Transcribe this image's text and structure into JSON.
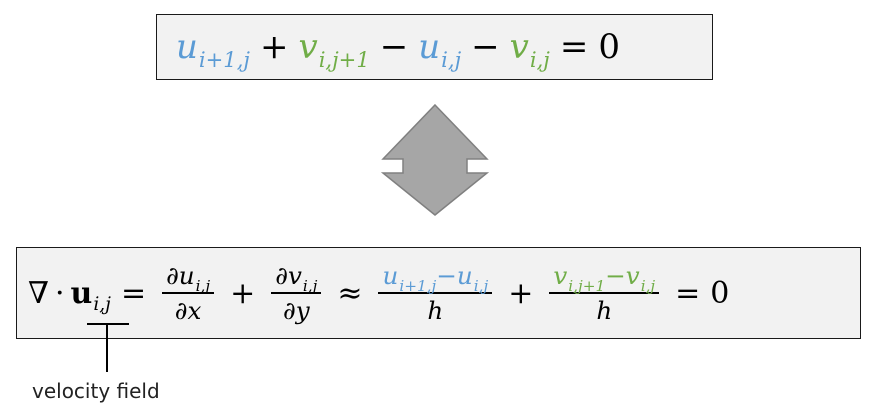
{
  "top_equation": {
    "t1_base": "u",
    "t1_sub": "i+1,j",
    "plus": "+",
    "t2_base": "v",
    "t2_sub": "i,j+1",
    "minus1": "−",
    "t3_base": "u",
    "t3_sub": "i,j",
    "minus2": "−",
    "t4_base": "v",
    "t4_sub": "i,j",
    "equals": "=",
    "rhs": "0"
  },
  "bottom_equation": {
    "nabla": "∇",
    "dot": "·",
    "u_bold": "u",
    "u_sub": "i,j",
    "eq1": "=",
    "frac1_num_pre": "∂",
    "frac1_num_base": "u",
    "frac1_num_sub": "i,j",
    "frac1_den": "∂x",
    "plus1": "+",
    "frac2_num_pre": "∂",
    "frac2_num_base": "v",
    "frac2_num_sub": "i,j",
    "frac2_den": "∂y",
    "approx": "≈",
    "frac3_a_base": "u",
    "frac3_a_sub": "i+1,j",
    "frac3_minus": "−",
    "frac3_b_base": "u",
    "frac3_b_sub": "i,j",
    "frac3_den": "h",
    "plus2": "+",
    "frac4_a_base": "v",
    "frac4_a_sub": "i,j+1",
    "frac4_minus": "−",
    "frac4_b_base": "v",
    "frac4_b_sub": "i,j",
    "frac4_den": "h",
    "eq2": "=",
    "rhs": "0"
  },
  "callout": {
    "label": "velocity field"
  },
  "colors": {
    "u_color": "#5b9bd5",
    "v_color": "#70ad47",
    "arrow_fill": "#a6a6a6",
    "arrow_stroke": "#808080"
  },
  "icons": {
    "arrow": "double-vertical-arrow-icon"
  }
}
